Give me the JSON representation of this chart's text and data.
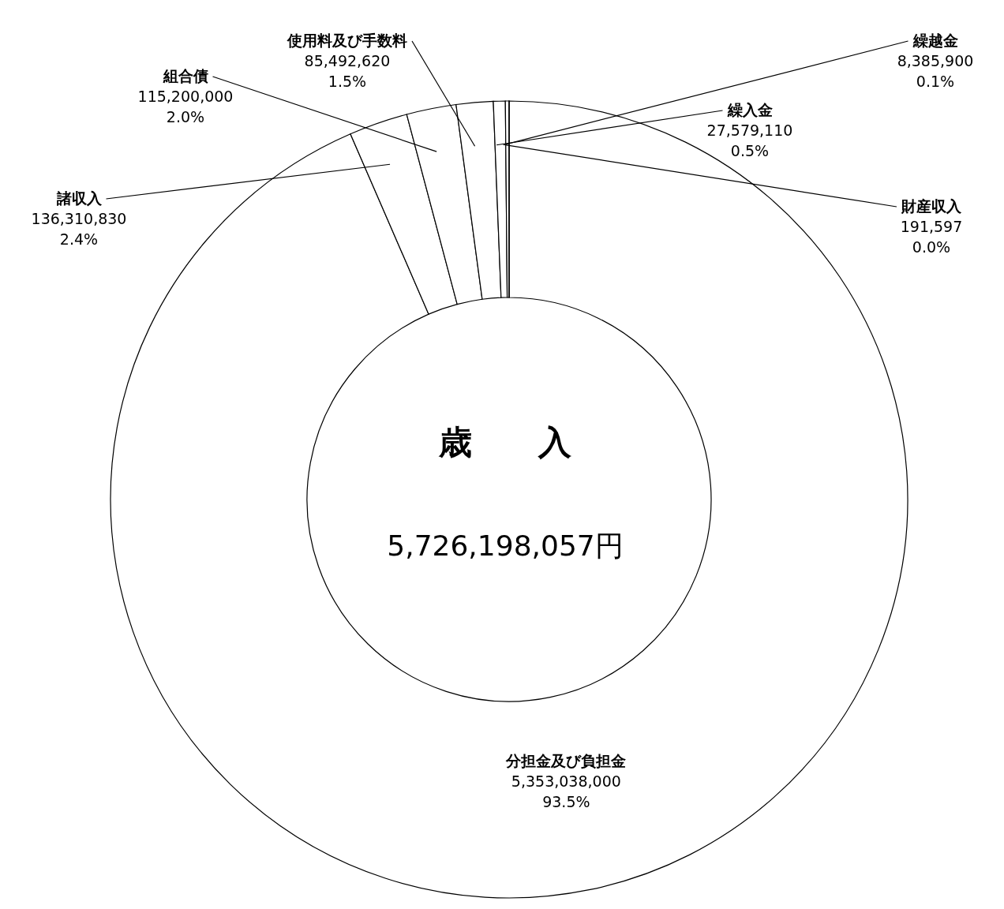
{
  "chart_data": {
    "type": "donut",
    "title": "歳　　入",
    "annotations": [
      "5,726,198,057円"
    ],
    "categories": [
      "分担金及び負担金",
      "諸収入",
      "組合債",
      "使用料及び手数料",
      "繰入金",
      "繰越金",
      "財産収入"
    ],
    "values": [
      5353038000,
      136310830,
      115200000,
      85492620,
      27579110,
      8385900,
      191597
    ],
    "value_labels": [
      "5,353,038,000\n93.5%",
      "136,310,830\n2.4%",
      "115,200,000\n2.0%",
      "85,492,620\n1.5%",
      "27,579,110\n0.5%",
      "8,385,900\n0.1%",
      "191,597\n0.0%"
    ],
    "colors": [
      "#ffffff",
      "#ffffff",
      "#ffffff",
      "#ffffff",
      "#ffffff",
      "#ffffff",
      "#ffffff"
    ],
    "legend": false
  }
}
